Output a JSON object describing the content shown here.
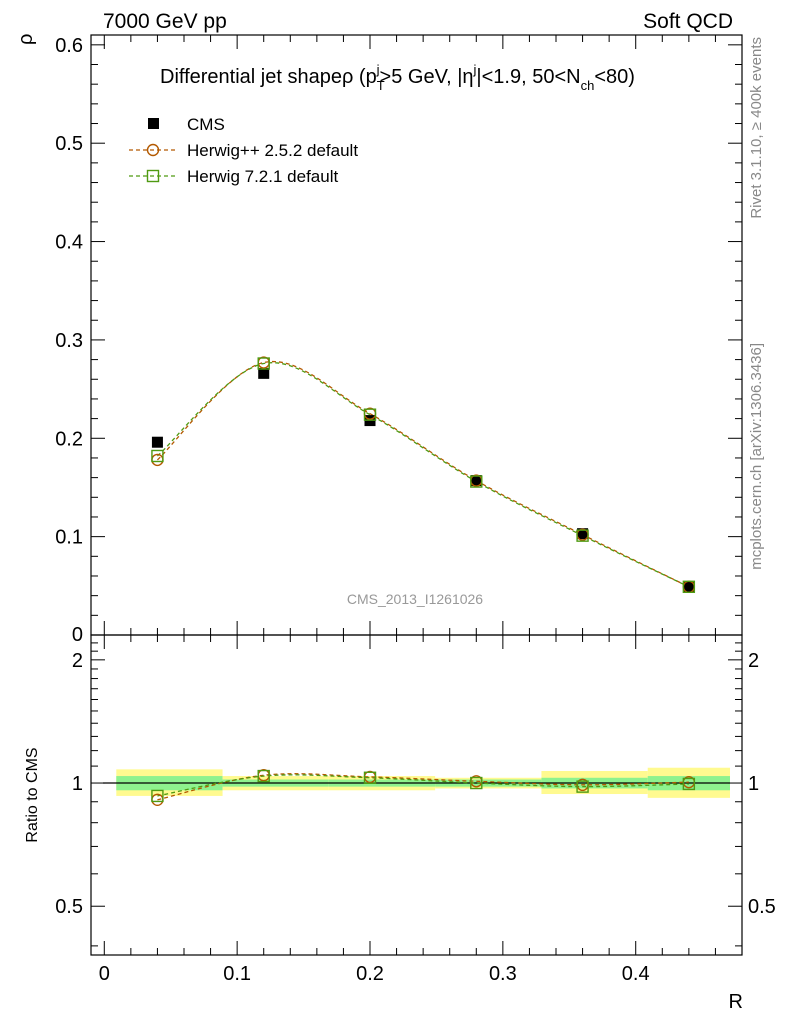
{
  "header": {
    "left": "7000 GeV pp",
    "right": "Soft QCD"
  },
  "side_text": {
    "rivet": "Rivet 3.1.10, ≥ 400k events",
    "mcplots": "mcplots.cern.ch [arXiv:1306.3436]"
  },
  "chart_data": [
    {
      "type": "scatter",
      "title": "Differential jet shape ρ (p_T^j>5 GeV, |η^j|<1.9, 50<N_ch<80)",
      "title_parts": {
        "main": "Differential jet shape",
        "rho": "ρ (p",
        "sup_j1": "j",
        "sub_T": "T",
        "mid": ">5 GeV, |η",
        "sup_j2": "j",
        "mid2": "|<1.9, 50<N",
        "sub_ch": "ch",
        "end": "<80)"
      },
      "watermark": "CMS_2013_I1261026",
      "xlabel": "R",
      "ylabel": "ρ",
      "xlim": [
        -0.01,
        0.48
      ],
      "ylim": [
        0,
        0.61
      ],
      "yticks": [
        0.1,
        0.2,
        0.3,
        0.4,
        0.5,
        0.6
      ],
      "ytick_labels": [
        "0.1",
        "0.2",
        "0.3",
        "0.4",
        "0.5",
        "0.6"
      ],
      "x": [
        0.04,
        0.12,
        0.2,
        0.28,
        0.36,
        0.44
      ],
      "series": [
        {
          "name": "CMS",
          "values": [
            0.196,
            0.266,
            0.218,
            0.157,
            0.103,
            0.049
          ],
          "color": "#000000",
          "marker": "filled-square"
        },
        {
          "name": "Herwig++ 2.5.2 default",
          "values": [
            0.178,
            0.277,
            0.225,
            0.157,
            0.102,
            0.049
          ],
          "color": "#b35900",
          "marker": "open-circle"
        },
        {
          "name": "Herwig 7.2.1 default",
          "values": [
            0.182,
            0.276,
            0.224,
            0.156,
            0.101,
            0.049
          ],
          "color": "#4f9a12",
          "marker": "open-square"
        }
      ],
      "legend": "top-left"
    },
    {
      "type": "scatter",
      "ylabel": "Ratio to CMS",
      "xlabel": "R",
      "xlim": [
        -0.01,
        0.48
      ],
      "ylim": [
        0.38,
        2.3
      ],
      "log_y": true,
      "yticks": [
        0.5,
        1,
        2
      ],
      "ytick_labels": [
        "0.5",
        "1",
        "2"
      ],
      "xticks": [
        0,
        0.1,
        0.2,
        0.3,
        0.4
      ],
      "xtick_labels": [
        "0",
        "0.1",
        "0.2",
        "0.3",
        "0.4"
      ],
      "x": [
        0.04,
        0.12,
        0.2,
        0.28,
        0.36,
        0.44
      ],
      "bins": [
        [
          0,
          0.08
        ],
        [
          0.08,
          0.16
        ],
        [
          0.16,
          0.24
        ],
        [
          0.24,
          0.32
        ],
        [
          0.32,
          0.4
        ],
        [
          0.4,
          0.48
        ]
      ],
      "band_inner": [
        [
          0.96,
          1.04
        ],
        [
          0.98,
          1.02
        ],
        [
          0.98,
          1.02
        ],
        [
          0.98,
          1.02
        ],
        [
          0.97,
          1.03
        ],
        [
          0.96,
          1.04
        ]
      ],
      "band_outer": [
        [
          0.93,
          1.08
        ],
        [
          0.96,
          1.04
        ],
        [
          0.96,
          1.04
        ],
        [
          0.97,
          1.03
        ],
        [
          0.94,
          1.07
        ],
        [
          0.92,
          1.09
        ]
      ],
      "series": [
        {
          "name": "Herwig++ 2.5.2 default",
          "values": [
            0.91,
            1.045,
            1.035,
            1.01,
            0.99,
            1.005
          ],
          "color": "#b35900"
        },
        {
          "name": "Herwig 7.2.1 default",
          "values": [
            0.93,
            1.04,
            1.03,
            1.0,
            0.98,
            0.995
          ],
          "color": "#4f9a12"
        }
      ]
    }
  ]
}
